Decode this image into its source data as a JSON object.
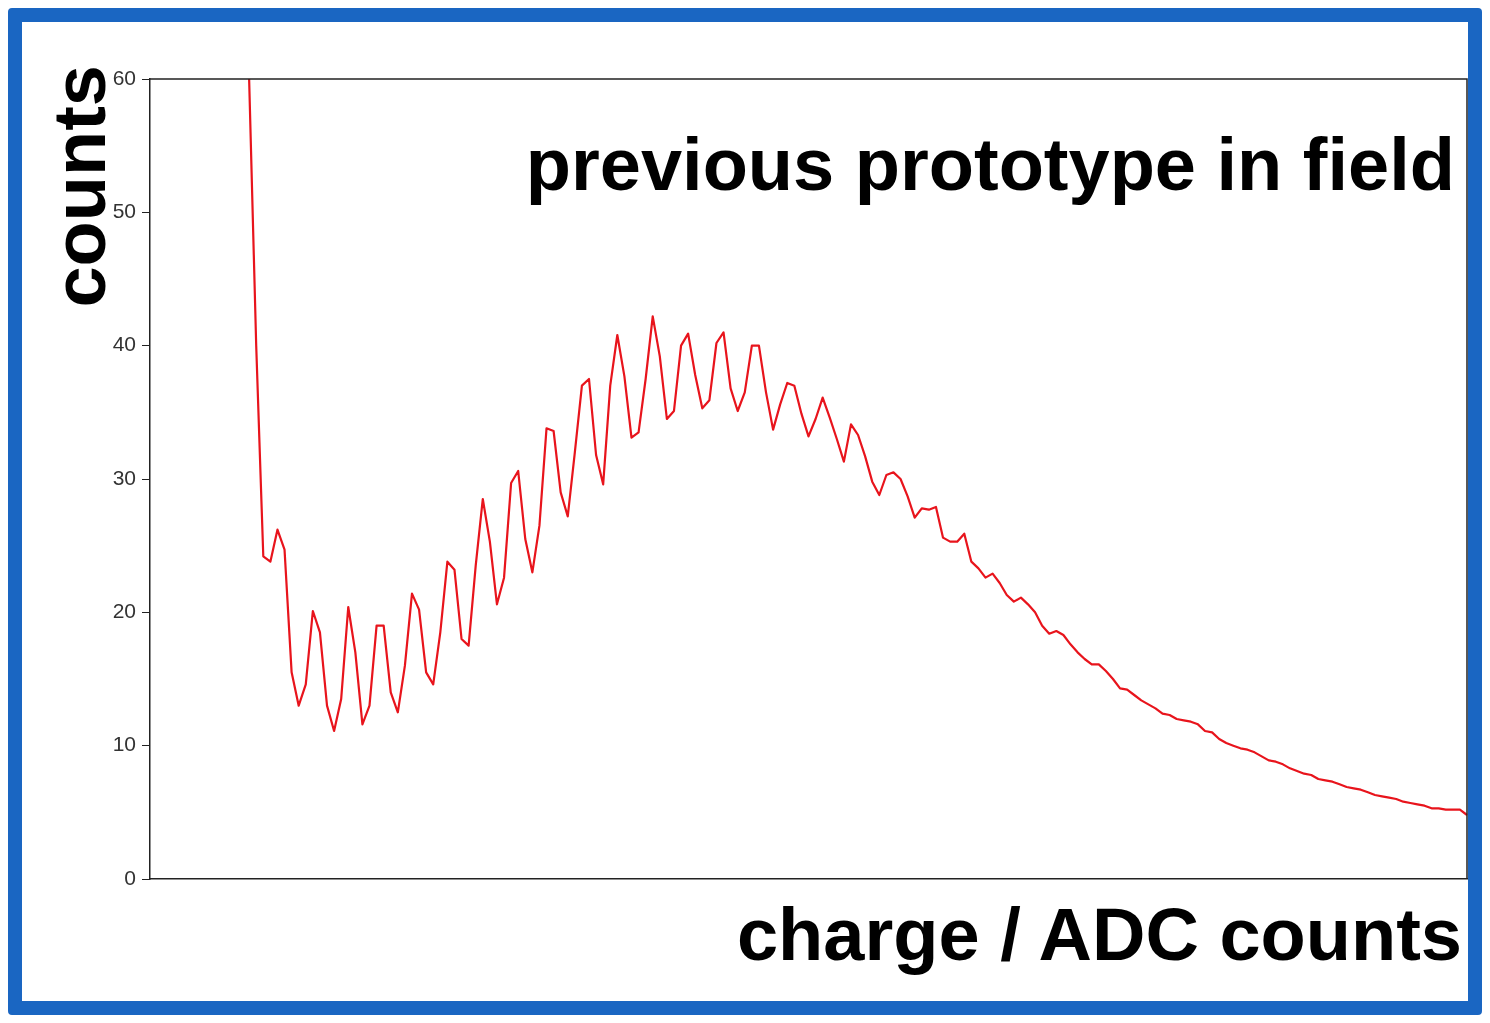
{
  "chart_data": {
    "type": "line",
    "title": "previous prototype in field",
    "xlabel": "charge / ADC counts",
    "ylabel": "counts",
    "categories": [
      null,
      null,
      null,
      null,
      null,
      null,
      null,
      null,
      null,
      null,
      null,
      null,
      null,
      null,
      null,
      null,
      null,
      null,
      null,
      null,
      null,
      null,
      null,
      null,
      null,
      null,
      null,
      null,
      null,
      null,
      null,
      null,
      null,
      null,
      null,
      null,
      null,
      null,
      null,
      null,
      null,
      null,
      null,
      null,
      null,
      null,
      null,
      null,
      null,
      null,
      null,
      null,
      null,
      null,
      null,
      null,
      null,
      null,
      null,
      null,
      null,
      null,
      null,
      null,
      null,
      null,
      null,
      null,
      null,
      null,
      null,
      null,
      null,
      null,
      null,
      null,
      null,
      null,
      null,
      null,
      null,
      null,
      null,
      null,
      null,
      null,
      null,
      null,
      null,
      null,
      null,
      null,
      null,
      null,
      null,
      null,
      null,
      null,
      null,
      null,
      null,
      null,
      null,
      null,
      null,
      null,
      null,
      null,
      null,
      null,
      null,
      null,
      null,
      null,
      null,
      null,
      null,
      null,
      null,
      null,
      null,
      null,
      null,
      null,
      null,
      null,
      null,
      null,
      null,
      null,
      null,
      null,
      null,
      null,
      null,
      null,
      null,
      null,
      null,
      null,
      null,
      null,
      null,
      null,
      null,
      null,
      null,
      null,
      null,
      null,
      null,
      null,
      null,
      null,
      null,
      null,
      null,
      null,
      null,
      null,
      null,
      null,
      null,
      null,
      null,
      null,
      null,
      null,
      null,
      null,
      null,
      null,
      null,
      null,
      null,
      null,
      null,
      null,
      null,
      null,
      null,
      null,
      null,
      null,
      null,
      null,
      null
    ],
    "series": [
      {
        "color": "#e8141c",
        "values": [
          null,
          null,
          null,
          null,
          null,
          null,
          null,
          null,
          null,
          null,
          null,
          null,
          null,
          null,
          60,
          40,
          24.2,
          23.8,
          26.2,
          24.7,
          15.5,
          13.0,
          14.6,
          20.1,
          18.5,
          13.0,
          11.1,
          13.5,
          20.4,
          17.0,
          11.6,
          13.0,
          19.0,
          19.0,
          14.0,
          12.5,
          16.0,
          21.4,
          20.2,
          15.5,
          14.6,
          18.5,
          23.8,
          23.2,
          18.0,
          17.5,
          23.5,
          28.5,
          25.3,
          20.6,
          22.6,
          29.7,
          30.6,
          25.5,
          23.0,
          26.5,
          33.8,
          33.6,
          29.0,
          27.2,
          32.0,
          37.0,
          37.5,
          31.8,
          29.6,
          37.0,
          40.8,
          37.7,
          33.1,
          33.5,
          37.5,
          42.2,
          39.2,
          34.5,
          35.1,
          40.0,
          40.9,
          37.8,
          35.3,
          35.9,
          40.2,
          41.0,
          36.8,
          35.1,
          36.5,
          40.0,
          40.0,
          36.5,
          33.7,
          35.6,
          37.2,
          37.0,
          34.9,
          33.2,
          34.5,
          36.1,
          34.6,
          33.0,
          31.3,
          34.1,
          33.3,
          31.7,
          29.8,
          28.8,
          30.3,
          30.5,
          30.0,
          28.7,
          27.1,
          27.8,
          27.7,
          27.9,
          25.6,
          25.3,
          25.3,
          25.9,
          23.8,
          23.3,
          22.6,
          22.9,
          22.2,
          21.3,
          20.8,
          21.1,
          20.6,
          20.0,
          19.0,
          18.4,
          18.6,
          18.3,
          17.6,
          17.0,
          16.5,
          16.1,
          16.1,
          15.6,
          15.0,
          14.3,
          14.2,
          13.8,
          13.4,
          13.1,
          12.8,
          12.4,
          12.3,
          12.0,
          11.9,
          11.8,
          11.6,
          11.1,
          11.0,
          10.5,
          10.2,
          10.0,
          9.8,
          9.7,
          9.5,
          9.2,
          8.9,
          8.8,
          8.6,
          8.3,
          8.1,
          7.9,
          7.8,
          7.5,
          7.4,
          7.3,
          7.1,
          6.9,
          6.8,
          6.7,
          6.5,
          6.3,
          6.2,
          6.1,
          6.0,
          5.8,
          5.7,
          5.6,
          5.5,
          5.3,
          5.3,
          5.2,
          5.2,
          5.2,
          4.8
        ]
      }
    ],
    "ylim": [
      0,
      60
    ],
    "yticks": [
      0,
      10,
      20,
      30,
      40,
      50,
      60
    ],
    "tick_labels": "y",
    "marker": "none",
    "line_style": "solid"
  }
}
